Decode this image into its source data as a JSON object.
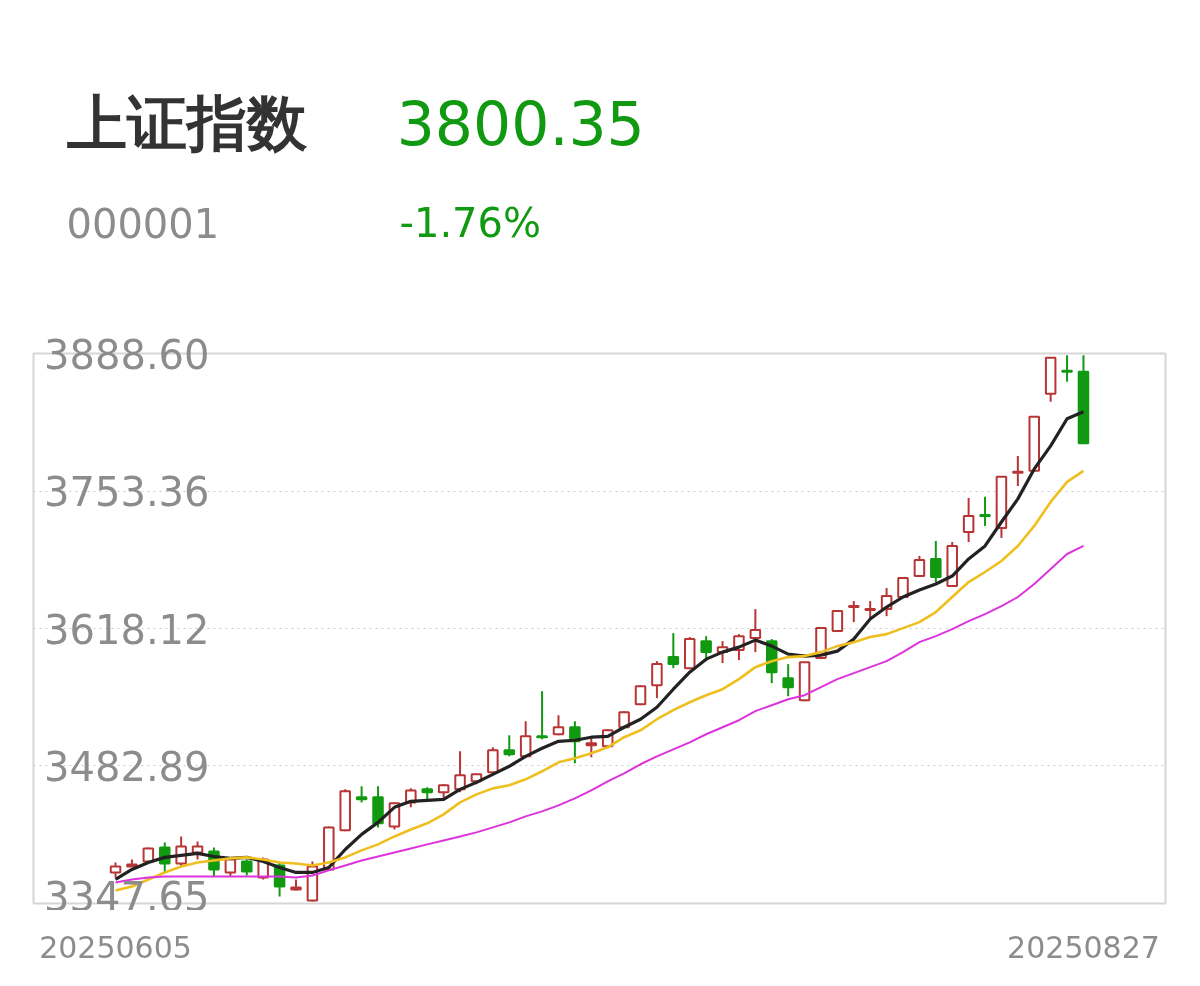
{
  "chart_data": {
    "type": "candlestick",
    "title": "上证指数",
    "annotations": [
      "3800.35",
      "000001",
      "-1.76%"
    ],
    "categories": [
      "20250605",
      null,
      null,
      null,
      null,
      null,
      null,
      null,
      null,
      null,
      null,
      null,
      null,
      null,
      null,
      null,
      null,
      null,
      null,
      null,
      null,
      null,
      null,
      null,
      null,
      null,
      null,
      null,
      null,
      null,
      null,
      null,
      null,
      null,
      null,
      null,
      null,
      null,
      null,
      null,
      null,
      null,
      null,
      null,
      null,
      null,
      null,
      null,
      null,
      null,
      null,
      null,
      null,
      null,
      null,
      null,
      null,
      null,
      null,
      "20250827"
    ],
    "ohlc": [
      [
        3378.2,
        3388.0,
        3373.3,
        3384.1
      ],
      [
        3384.1,
        3391.0,
        3383.6,
        3386.1
      ],
      [
        3389.0,
        3402.8,
        3388.0,
        3401.8
      ],
      [
        3402.8,
        3407.7,
        3378.2,
        3387.0
      ],
      [
        3387.0,
        3413.6,
        3384.1,
        3403.8
      ],
      [
        3397.9,
        3408.7,
        3391.0,
        3403.8
      ],
      [
        3398.9,
        3402.8,
        3374.2,
        3381.1
      ],
      [
        3378.2,
        3393.0,
        3374.2,
        3391.0
      ],
      [
        3389.0,
        3391.0,
        3375.2,
        3379.2
      ],
      [
        3373.3,
        3393.0,
        3371.3,
        3391.0
      ],
      [
        3385.1,
        3388.0,
        3354.5,
        3364.4
      ],
      [
        3361.4,
        3371.3,
        3360.5,
        3363.4
      ],
      [
        3350.6,
        3389.0,
        3349.6,
        3384.1
      ],
      [
        3381.1,
        3423.5,
        3380.2,
        3422.5
      ],
      [
        3419.6,
        3459.9,
        3418.6,
        3458.0
      ],
      [
        3452.1,
        3462.9,
        3447.1,
        3450.1
      ],
      [
        3452.1,
        3462.9,
        3422.5,
        3426.5
      ],
      [
        3423.5,
        3447.1,
        3420.5,
        3446.2
      ],
      [
        3447.1,
        3460.9,
        3442.2,
        3458.9
      ],
      [
        3459.9,
        3461.9,
        3450.1,
        3457.0
      ],
      [
        3457.0,
        3464.9,
        3450.1,
        3463.9
      ],
      [
        3459.9,
        3497.4,
        3457.0,
        3473.7
      ],
      [
        3467.8,
        3474.7,
        3464.9,
        3474.7
      ],
      [
        3476.7,
        3501.3,
        3475.7,
        3498.4
      ],
      [
        3498.4,
        3513.1,
        3492.4,
        3494.4
      ],
      [
        3492.4,
        3526.9,
        3491.5,
        3512.1
      ],
      [
        3512.1,
        3556.5,
        3509.2,
        3511.2
      ],
      [
        3514.1,
        3532.8,
        3513.1,
        3521.0
      ],
      [
        3521.0,
        3526.9,
        3485.5,
        3507.2
      ],
      [
        3503.3,
        3512.1,
        3491.5,
        3505.3
      ],
      [
        3502.3,
        3519.0,
        3501.3,
        3518.1
      ],
      [
        3521.0,
        3536.8,
        3520.0,
        3535.8
      ],
      [
        3543.7,
        3562.4,
        3542.7,
        3561.4
      ],
      [
        3562.4,
        3586.0,
        3549.6,
        3583.1
      ],
      [
        3590.0,
        3613.6,
        3579.1,
        3583.1
      ],
      [
        3579.1,
        3609.7,
        3578.1,
        3607.7
      ],
      [
        3605.7,
        3610.6,
        3586.0,
        3594.9
      ],
      [
        3594.9,
        3605.7,
        3584.1,
        3599.8
      ],
      [
        3596.9,
        3612.6,
        3587.0,
        3610.6
      ],
      [
        3608.7,
        3637.2,
        3594.9,
        3616.6
      ],
      [
        3605.7,
        3607.7,
        3564.4,
        3575.2
      ],
      [
        3569.3,
        3583.1,
        3551.5,
        3560.4
      ],
      [
        3547.6,
        3585.0,
        3546.6,
        3585.0
      ],
      [
        3589.0,
        3619.5,
        3588.0,
        3618.5
      ],
      [
        3615.6,
        3636.3,
        3614.6,
        3635.3
      ],
      [
        3639.2,
        3645.1,
        3624.4,
        3640.2
      ],
      [
        3636.3,
        3645.1,
        3627.4,
        3637.2
      ],
      [
        3637.2,
        3657.9,
        3630.3,
        3650.0
      ],
      [
        3649.1,
        3668.8,
        3648.1,
        3667.8
      ],
      [
        3669.7,
        3689.5,
        3668.8,
        3685.5
      ],
      [
        3686.5,
        3704.2,
        3663.8,
        3668.8
      ],
      [
        3659.9,
        3703.2,
        3658.9,
        3699.3
      ],
      [
        3713.1,
        3746.6,
        3703.2,
        3728.8
      ],
      [
        3729.8,
        3747.6,
        3719.0,
        3728.8
      ],
      [
        3717.0,
        3767.3,
        3707.2,
        3767.3
      ],
      [
        3771.2,
        3787.9,
        3758.4,
        3772.2
      ],
      [
        3773.2,
        3826.4,
        3772.2,
        3826.4
      ],
      [
        3849.0,
        3884.5,
        3841.1,
        3884.5
      ],
      [
        3871.7,
        3887.0,
        3860.8,
        3870.7
      ],
      [
        3870.7,
        3887.0,
        3800.35,
        3800.35
      ]
    ],
    "colors": [
      "#b83535",
      "#b83535",
      "#b83535",
      "#119a11",
      "#b83535",
      "#b83535",
      "#119a11",
      "#b83535",
      "#119a11",
      "#b83535",
      "#119a11",
      "#b83535",
      "#b83535",
      "#b83535",
      "#b83535",
      "#119a11",
      "#119a11",
      "#b83535",
      "#b83535",
      "#119a11",
      "#b83535",
      "#b83535",
      "#b83535",
      "#b83535",
      "#119a11",
      "#b83535",
      "#119a11",
      "#b83535",
      "#119a11",
      "#b83535",
      "#b83535",
      "#b83535",
      "#b83535",
      "#b83535",
      "#119a11",
      "#b83535",
      "#119a11",
      "#b83535",
      "#b83535",
      "#b83535",
      "#119a11",
      "#119a11",
      "#b83535",
      "#b83535",
      "#b83535",
      "#b83535",
      "#b83535",
      "#b83535",
      "#b83535",
      "#b83535",
      "#119a11",
      "#b83535",
      "#b83535",
      "#119a11",
      "#b83535",
      "#b83535",
      "#b83535",
      "#b83535",
      "#119a11",
      "#119a11"
    ],
    "series": [
      {
        "type": "line",
        "color": "#222222",
        "values": [
          3371.3,
          3381.1,
          3388.0,
          3393.0,
          3394.9,
          3396.9,
          3393.9,
          3392.0,
          3393.0,
          3389.0,
          3383.1,
          3378.2,
          3378.2,
          3383.1,
          3400.8,
          3415.6,
          3427.4,
          3442.2,
          3448.1,
          3449.1,
          3450.1,
          3459.9,
          3466.8,
          3474.7,
          3482.6,
          3492.4,
          3500.3,
          3507.2,
          3508.2,
          3511.2,
          3512.1,
          3521.0,
          3528.9,
          3540.7,
          3558.4,
          3575.2,
          3588.0,
          3594.9,
          3599.8,
          3606.7,
          3600.8,
          3592.9,
          3591.0,
          3591.9,
          3595.9,
          3607.7,
          3627.4,
          3639.2,
          3649.1,
          3656.0,
          3661.9,
          3669.7,
          3686.5,
          3699.3,
          3722.9,
          3745.6,
          3775.1,
          3797.8,
          3824.4,
          3831.3
        ]
      },
      {
        "type": "line",
        "color": "#efbf1f",
        "values": [
          3360.5,
          3364.4,
          3371.3,
          3378.2,
          3384.1,
          3388.0,
          3390.0,
          3392.0,
          3393.0,
          3391.0,
          3388.0,
          3387.0,
          3385.1,
          3388.0,
          3393.0,
          3399.9,
          3405.8,
          3413.6,
          3420.5,
          3426.5,
          3435.3,
          3447.1,
          3455.0,
          3460.9,
          3463.9,
          3469.8,
          3477.7,
          3486.5,
          3490.5,
          3495.4,
          3501.3,
          3511.2,
          3518.0,
          3528.9,
          3537.8,
          3545.6,
          3552.5,
          3558.4,
          3568.3,
          3580.1,
          3586.0,
          3590.0,
          3591.0,
          3594.9,
          3600.8,
          3604.7,
          3609.7,
          3612.6,
          3618.5,
          3624.4,
          3634.3,
          3649.1,
          3663.8,
          3673.7,
          3684.5,
          3699.3,
          3719.0,
          3742.6,
          3762.3,
          3773.2
        ]
      },
      {
        "type": "line",
        "color": "#dd33dd",
        "values": [
          3368.3,
          3371.3,
          3373.3,
          3374.2,
          3374.2,
          3374.2,
          3374.2,
          3374.2,
          3374.2,
          3374.2,
          3374.2,
          3373.3,
          3375.2,
          3380.2,
          3385.1,
          3390.0,
          3393.9,
          3397.9,
          3401.8,
          3405.8,
          3409.7,
          3413.6,
          3417.6,
          3422.5,
          3427.4,
          3433.3,
          3438.3,
          3444.2,
          3451.1,
          3459.0,
          3467.8,
          3475.7,
          3484.6,
          3492.4,
          3499.3,
          3506.2,
          3514.1,
          3521.0,
          3527.9,
          3536.8,
          3542.7,
          3548.6,
          3552.5,
          3560.4,
          3568.3,
          3574.2,
          3580.1,
          3586.0,
          3594.9,
          3604.7,
          3610.6,
          3617.5,
          3625.4,
          3632.3,
          3640.2,
          3649.1,
          3661.9,
          3676.6,
          3691.4,
          3699.3
        ]
      }
    ],
    "ylim": [
      3347.65,
      3888.6
    ],
    "yticks": [
      3347.65,
      3482.89,
      3618.12,
      3753.36,
      {
        "value": 3888.6,
        "label": "3888.60"
      }
    ],
    "grid": "y"
  }
}
